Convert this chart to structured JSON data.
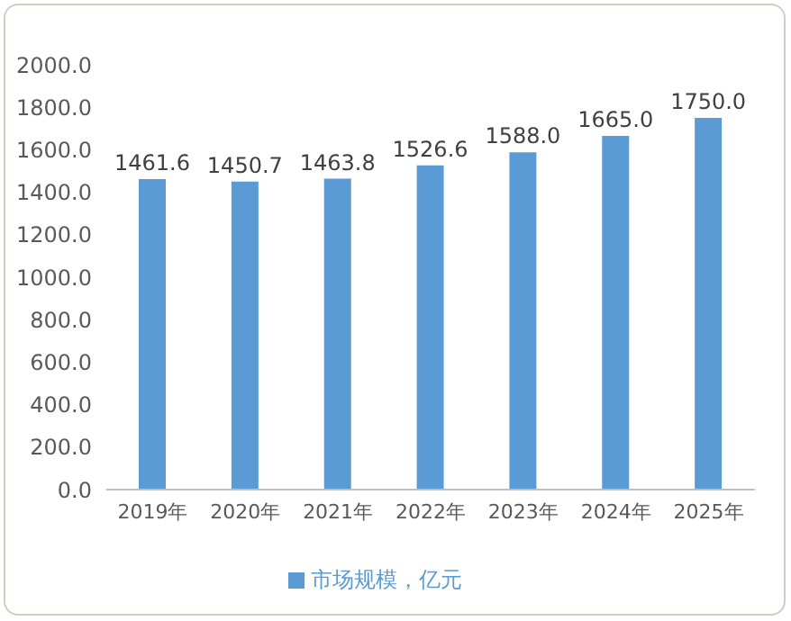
{
  "chart_data": {
    "type": "bar",
    "categories": [
      "2019年",
      "2020年",
      "2021年",
      "2022年",
      "2023年",
      "2024年",
      "2025年"
    ],
    "series": [
      {
        "name": "市场规模，亿元",
        "color": "#5b9bd5",
        "values": [
          1461.6,
          1450.7,
          1463.8,
          1526.6,
          1588.0,
          1665.0,
          1750.0
        ],
        "value_labels": [
          "1461.6",
          "1450.7",
          "1463.8",
          "1526.6",
          "1588.0",
          "1665.0",
          "1750.0"
        ]
      }
    ],
    "ylim": [
      0,
      2000
    ],
    "yticks": [
      {
        "value": 0,
        "label": "0.0"
      },
      {
        "value": 200,
        "label": "200.0"
      },
      {
        "value": 400,
        "label": "400.0"
      },
      {
        "value": 600,
        "label": "600.0"
      },
      {
        "value": 800,
        "label": "800.0"
      },
      {
        "value": 1000,
        "label": "1000.0"
      },
      {
        "value": 1200,
        "label": "1200.0"
      },
      {
        "value": 1400,
        "label": "1400.0"
      },
      {
        "value": 1600,
        "label": "1600.0"
      },
      {
        "value": 1800,
        "label": "1800.0"
      },
      {
        "value": 2000,
        "label": "2000.0"
      }
    ],
    "grid": false,
    "legend": "bottom"
  }
}
